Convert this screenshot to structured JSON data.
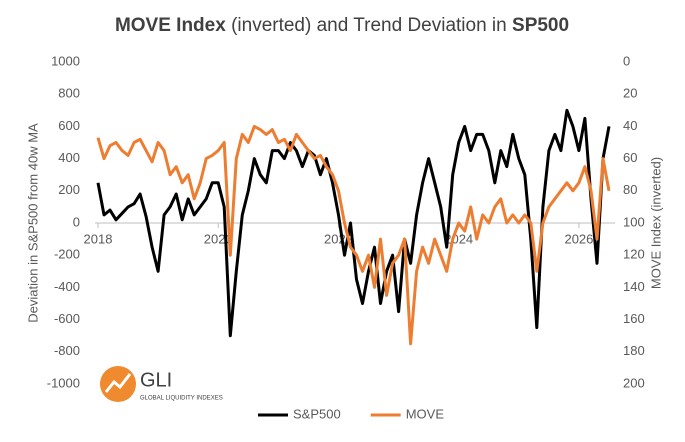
{
  "chart_data": {
    "type": "line",
    "title": [
      {
        "text": "MOVE Index",
        "bold": true
      },
      {
        "text": " (inverted) and Trend Deviation in ",
        "bold": false
      },
      {
        "text": "SP500",
        "bold": true
      }
    ],
    "y_label": "Deviation in S&P500 from 40w MA",
    "y2_label": "MOVE Index (inverted)",
    "x": [
      2018.0,
      2018.1,
      2018.2,
      2018.3,
      2018.4,
      2018.5,
      2018.6,
      2018.7,
      2018.8,
      2018.9,
      2019.0,
      2019.1,
      2019.2,
      2019.3,
      2019.4,
      2019.5,
      2019.6,
      2019.7,
      2019.8,
      2019.9,
      2020.0,
      2020.1,
      2020.2,
      2020.3,
      2020.4,
      2020.5,
      2020.6,
      2020.7,
      2020.8,
      2020.9,
      2021.0,
      2021.1,
      2021.2,
      2021.3,
      2021.4,
      2021.5,
      2021.6,
      2021.7,
      2021.8,
      2021.9,
      2022.0,
      2022.1,
      2022.2,
      2022.3,
      2022.4,
      2022.5,
      2022.6,
      2022.7,
      2022.8,
      2022.9,
      2023.0,
      2023.1,
      2023.2,
      2023.3,
      2023.4,
      2023.5,
      2023.6,
      2023.7,
      2023.8,
      2023.9,
      2024.0,
      2024.1,
      2024.2,
      2024.3,
      2024.4,
      2024.5,
      2024.6,
      2024.7,
      2024.8,
      2024.9,
      2025.0,
      2025.1,
      2025.2,
      2025.3,
      2025.4,
      2025.5,
      2025.6,
      2025.7,
      2025.8,
      2025.9,
      2026.0,
      2026.1,
      2026.2,
      2026.3,
      2026.4,
      2026.5
    ],
    "series": [
      {
        "name": "S&P500",
        "color": "#000000",
        "values": [
          250,
          50,
          80,
          20,
          60,
          100,
          120,
          180,
          40,
          -150,
          -300,
          50,
          100,
          180,
          20,
          150,
          50,
          100,
          150,
          250,
          250,
          100,
          -700,
          -300,
          50,
          200,
          400,
          300,
          250,
          450,
          450,
          400,
          500,
          450,
          350,
          450,
          420,
          300,
          400,
          250,
          50,
          -200,
          0,
          -350,
          -500,
          -300,
          -150,
          -500,
          -300,
          -200,
          -550,
          -100,
          -250,
          50,
          250,
          400,
          250,
          100,
          -150,
          300,
          500,
          600,
          450,
          550,
          550,
          450,
          250,
          450,
          350,
          550,
          400,
          300,
          -100,
          -650,
          100,
          450,
          550,
          450,
          700,
          600,
          450,
          650,
          150,
          -250,
          400,
          600
        ]
      },
      {
        "name": "MOVE",
        "color": "#ed7d31",
        "axis": "y2",
        "values": [
          47,
          60,
          52,
          50,
          55,
          58,
          50,
          48,
          55,
          62,
          50,
          55,
          70,
          65,
          75,
          70,
          85,
          75,
          60,
          58,
          55,
          50,
          120,
          60,
          45,
          50,
          40,
          42,
          45,
          42,
          50,
          48,
          55,
          45,
          50,
          55,
          60,
          58,
          65,
          70,
          80,
          100,
          115,
          120,
          130,
          120,
          140,
          110,
          145,
          125,
          120,
          110,
          175,
          130,
          115,
          125,
          110,
          120,
          130,
          110,
          100,
          105,
          90,
          110,
          95,
          100,
          90,
          85,
          100,
          95,
          100,
          95,
          100,
          130,
          100,
          90,
          85,
          80,
          75,
          80,
          75,
          65,
          80,
          110,
          60,
          80
        ]
      }
    ],
    "xlim": [
      2017.95,
      2026.6
    ],
    "xticks": [
      2018,
      2020,
      2022,
      2024,
      2026
    ],
    "ylim": [
      -1000,
      1000
    ],
    "yticks": [
      -1000,
      -800,
      -600,
      -400,
      -200,
      0,
      200,
      400,
      600,
      800,
      1000
    ],
    "y2lim": [
      0,
      200
    ],
    "y2_inverted": true,
    "y2ticks": [
      0,
      20,
      40,
      60,
      80,
      100,
      120,
      140,
      160,
      180,
      200
    ],
    "grid": false,
    "legend": "bottom",
    "logo": {
      "name": "GLI",
      "tagline": "GLOBAL LIQUIDITY INDEXES"
    }
  }
}
